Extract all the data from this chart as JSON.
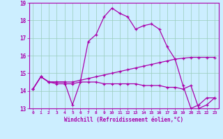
{
  "xlabel": "Windchill (Refroidissement éolien,°C)",
  "background_color": "#cceeff",
  "line_color": "#aa00aa",
  "grid_color": "#99ccbb",
  "xlim": [
    -0.5,
    23.5
  ],
  "ylim": [
    13,
    19
  ],
  "yticks": [
    13,
    14,
    15,
    16,
    17,
    18,
    19
  ],
  "xticks": [
    0,
    1,
    2,
    3,
    4,
    5,
    6,
    7,
    8,
    9,
    10,
    11,
    12,
    13,
    14,
    15,
    16,
    17,
    18,
    19,
    20,
    21,
    22,
    23
  ],
  "series1": [
    14.1,
    14.8,
    14.5,
    14.5,
    14.5,
    13.2,
    14.5,
    16.8,
    17.2,
    18.2,
    18.7,
    18.4,
    18.2,
    17.5,
    17.7,
    17.8,
    17.5,
    16.5,
    15.8,
    14.3,
    13.0,
    13.2,
    13.6,
    13.6
  ],
  "series2": [
    14.1,
    14.8,
    14.5,
    14.5,
    14.5,
    14.5,
    14.6,
    14.7,
    14.8,
    14.9,
    15.0,
    15.1,
    15.2,
    15.3,
    15.4,
    15.5,
    15.6,
    15.7,
    15.8,
    15.85,
    15.9,
    15.9,
    15.9,
    15.9
  ],
  "series3": [
    14.1,
    14.8,
    14.5,
    14.4,
    14.4,
    14.4,
    14.5,
    14.5,
    14.5,
    14.4,
    14.4,
    14.4,
    14.4,
    14.4,
    14.3,
    14.3,
    14.3,
    14.2,
    14.2,
    14.1,
    14.3,
    13.0,
    13.2,
    13.6
  ]
}
